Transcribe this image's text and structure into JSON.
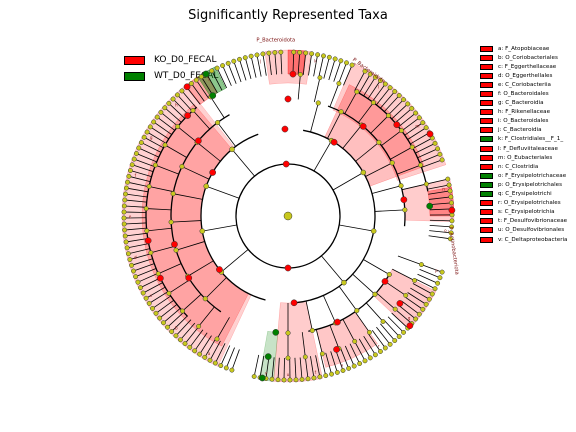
{
  "title": "Significantly Represented Taxa",
  "groups": [
    {
      "label": "KO_D0_FECAL",
      "color": "#ff0000"
    },
    {
      "label": "WT_D0_FECAL",
      "color": "#008000"
    }
  ],
  "chart_data": {
    "type": "cladogram",
    "title": "Significantly Represented Taxa",
    "legend_entries": [
      "KO_D0_FECAL",
      "WT_D0_FECAL"
    ],
    "biomarkers": [
      {
        "key": "a",
        "taxon": "F_Atopobiaceae",
        "group": "KO_D0_FECAL"
      },
      {
        "key": "b",
        "taxon": "O_Coriobacteriales",
        "group": "KO_D0_FECAL"
      },
      {
        "key": "c",
        "taxon": "F_Eggerthellaceae",
        "group": "KO_D0_FECAL"
      },
      {
        "key": "d",
        "taxon": "O_Eggerthellales",
        "group": "KO_D0_FECAL"
      },
      {
        "key": "e",
        "taxon": "C_Coriobacteriia",
        "group": "KO_D0_FECAL"
      },
      {
        "key": "f",
        "taxon": "O_Bacteroidales",
        "group": "KO_D0_FECAL"
      },
      {
        "key": "g",
        "taxon": "C_Bacteroidia",
        "group": "KO_D0_FECAL"
      },
      {
        "key": "h",
        "taxon": "F_Rikenellaceae",
        "group": "KO_D0_FECAL"
      },
      {
        "key": "i",
        "taxon": "O_Bacteroidales",
        "group": "KO_D0_FECAL"
      },
      {
        "key": "j",
        "taxon": "C_Bacteroidia",
        "group": "KO_D0_FECAL"
      },
      {
        "key": "k",
        "taxon": "F_Clostridiales__F_1_",
        "group": "WT_D0_FECAL"
      },
      {
        "key": "l",
        "taxon": "F_Defluviitaleaceae",
        "group": "KO_D0_FECAL"
      },
      {
        "key": "m",
        "taxon": "O_Eubacteriales",
        "group": "KO_D0_FECAL"
      },
      {
        "key": "n",
        "taxon": "C_Clostridia",
        "group": "KO_D0_FECAL"
      },
      {
        "key": "o",
        "taxon": "F_Erysipelotrichaceae",
        "group": "WT_D0_FECAL"
      },
      {
        "key": "p",
        "taxon": "O_Erysipelotrichales",
        "group": "WT_D0_FECAL"
      },
      {
        "key": "q",
        "taxon": "C_Erysipelotrichi",
        "group": "WT_D0_FECAL"
      },
      {
        "key": "r",
        "taxon": "O_Erysipelotrichales",
        "group": "KO_D0_FECAL"
      },
      {
        "key": "s",
        "taxon": "C_Erysipelotrichia",
        "group": "KO_D0_FECAL"
      },
      {
        "key": "t",
        "taxon": "F_Desulfovibrionaceae",
        "group": "KO_D0_FECAL"
      },
      {
        "key": "u",
        "taxon": "O_Desulfovibrionales",
        "group": "KO_D0_FECAL"
      },
      {
        "key": "v",
        "taxon": "C_Deltaproteobacteria",
        "group": "KO_D0_FECAL"
      }
    ],
    "clade_labels": [
      {
        "text": "P_Bacteroidota",
        "color": "#ff0000"
      },
      {
        "text": "P_Bacteroidota",
        "color": "#ff0000"
      },
      {
        "text": "P_Actinobacteriota",
        "color": "#ff0000"
      }
    ],
    "sector_keys": [
      "a",
      "b",
      "c",
      "d",
      "e",
      "f",
      "g",
      "h",
      "i",
      "j",
      "k",
      "l",
      "m",
      "n",
      "o",
      "p",
      "q",
      "r",
      "s",
      "t",
      "u",
      "v"
    ],
    "grid": false,
    "legend_position": "top-left"
  }
}
